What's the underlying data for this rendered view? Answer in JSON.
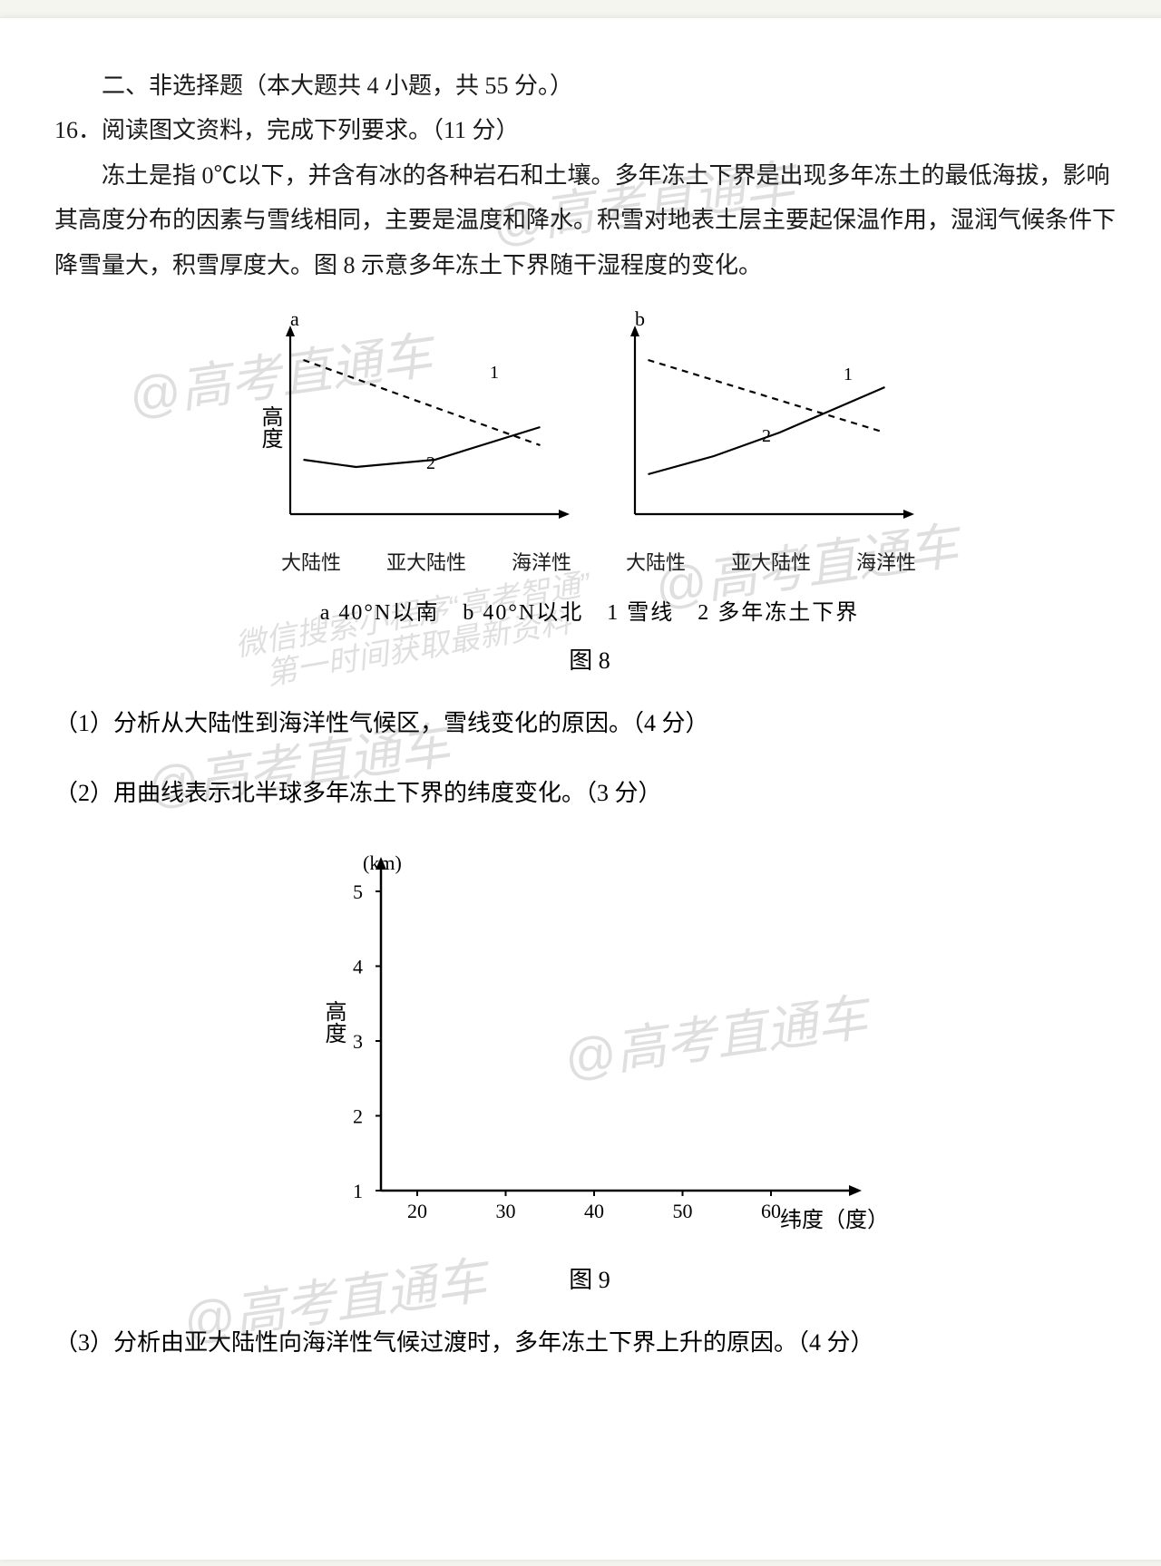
{
  "section": {
    "heading": "二、非选择题（本大题共 4 小题，共 55 分。）",
    "q16_title": "16．阅读图文资料，完成下列要求。（11 分）",
    "para1": "冻土是指 0℃以下，并含有冰的各种岩石和土壤。多年冻土下界是出现多年冻土的最低海拔，影响其高度分布的因素与雪线相同，主要是温度和降水。积雪对地表土层主要起保温作用，湿润气候条件下降雪量大，积雪厚度大。图 8 示意多年冻土下界随干湿程度的变化。"
  },
  "fig8": {
    "chart_a": {
      "title": "a",
      "y_label": "高度",
      "x_cats": [
        "大陆性",
        "亚大陆性",
        "海洋性"
      ],
      "series": {
        "snowline": {
          "label": "1",
          "style": "dashed",
          "color": "#000000",
          "points": [
            [
              0.05,
              0.15
            ],
            [
              0.95,
              0.62
            ]
          ]
        },
        "permafrost": {
          "label": "2",
          "style": "solid",
          "color": "#000000",
          "points": [
            [
              0.05,
              0.7
            ],
            [
              0.25,
              0.74
            ],
            [
              0.55,
              0.7
            ],
            [
              0.95,
              0.52
            ]
          ]
        }
      },
      "line_width": 2.2
    },
    "chart_b": {
      "title": "b",
      "y_label": "",
      "x_cats": [
        "大陆性",
        "亚大陆性",
        "海洋性"
      ],
      "series": {
        "snowline": {
          "label": "1",
          "style": "dashed",
          "color": "#000000",
          "points": [
            [
              0.05,
              0.15
            ],
            [
              0.95,
              0.55
            ]
          ]
        },
        "permafrost": {
          "label": "2",
          "style": "solid",
          "color": "#000000",
          "points": [
            [
              0.05,
              0.78
            ],
            [
              0.3,
              0.68
            ],
            [
              0.55,
              0.55
            ],
            [
              0.95,
              0.3
            ]
          ]
        }
      },
      "line_width": 2.2
    },
    "legend": "a 40°N以南　b 40°N以北　1 雪线　2 多年冻土下界",
    "caption": "图 8"
  },
  "questions": {
    "q1": "（1）分析从大陆性到海洋性气候区，雪线变化的原因。（4 分）",
    "q2": "（2）用曲线表示北半球多年冻土下界的纬度变化。（3 分）",
    "q3": "（3）分析由亚大陆性向海洋性气候过渡时，多年冻土下界上升的原因。（4 分）"
  },
  "fig9": {
    "y_label": "高度",
    "y_unit": "(km)",
    "y_ticks": [
      1,
      2,
      3,
      4,
      5
    ],
    "x_label": "纬度（度）",
    "x_ticks": [
      20,
      30,
      40,
      50,
      60
    ],
    "axis_color": "#000000",
    "line_width": 2.5,
    "caption": "图 9"
  },
  "watermarks": {
    "main": "@高考直通车",
    "line2a": "微信搜索小程序“高考智通”",
    "line2b": "第一时间获取最新资料"
  }
}
